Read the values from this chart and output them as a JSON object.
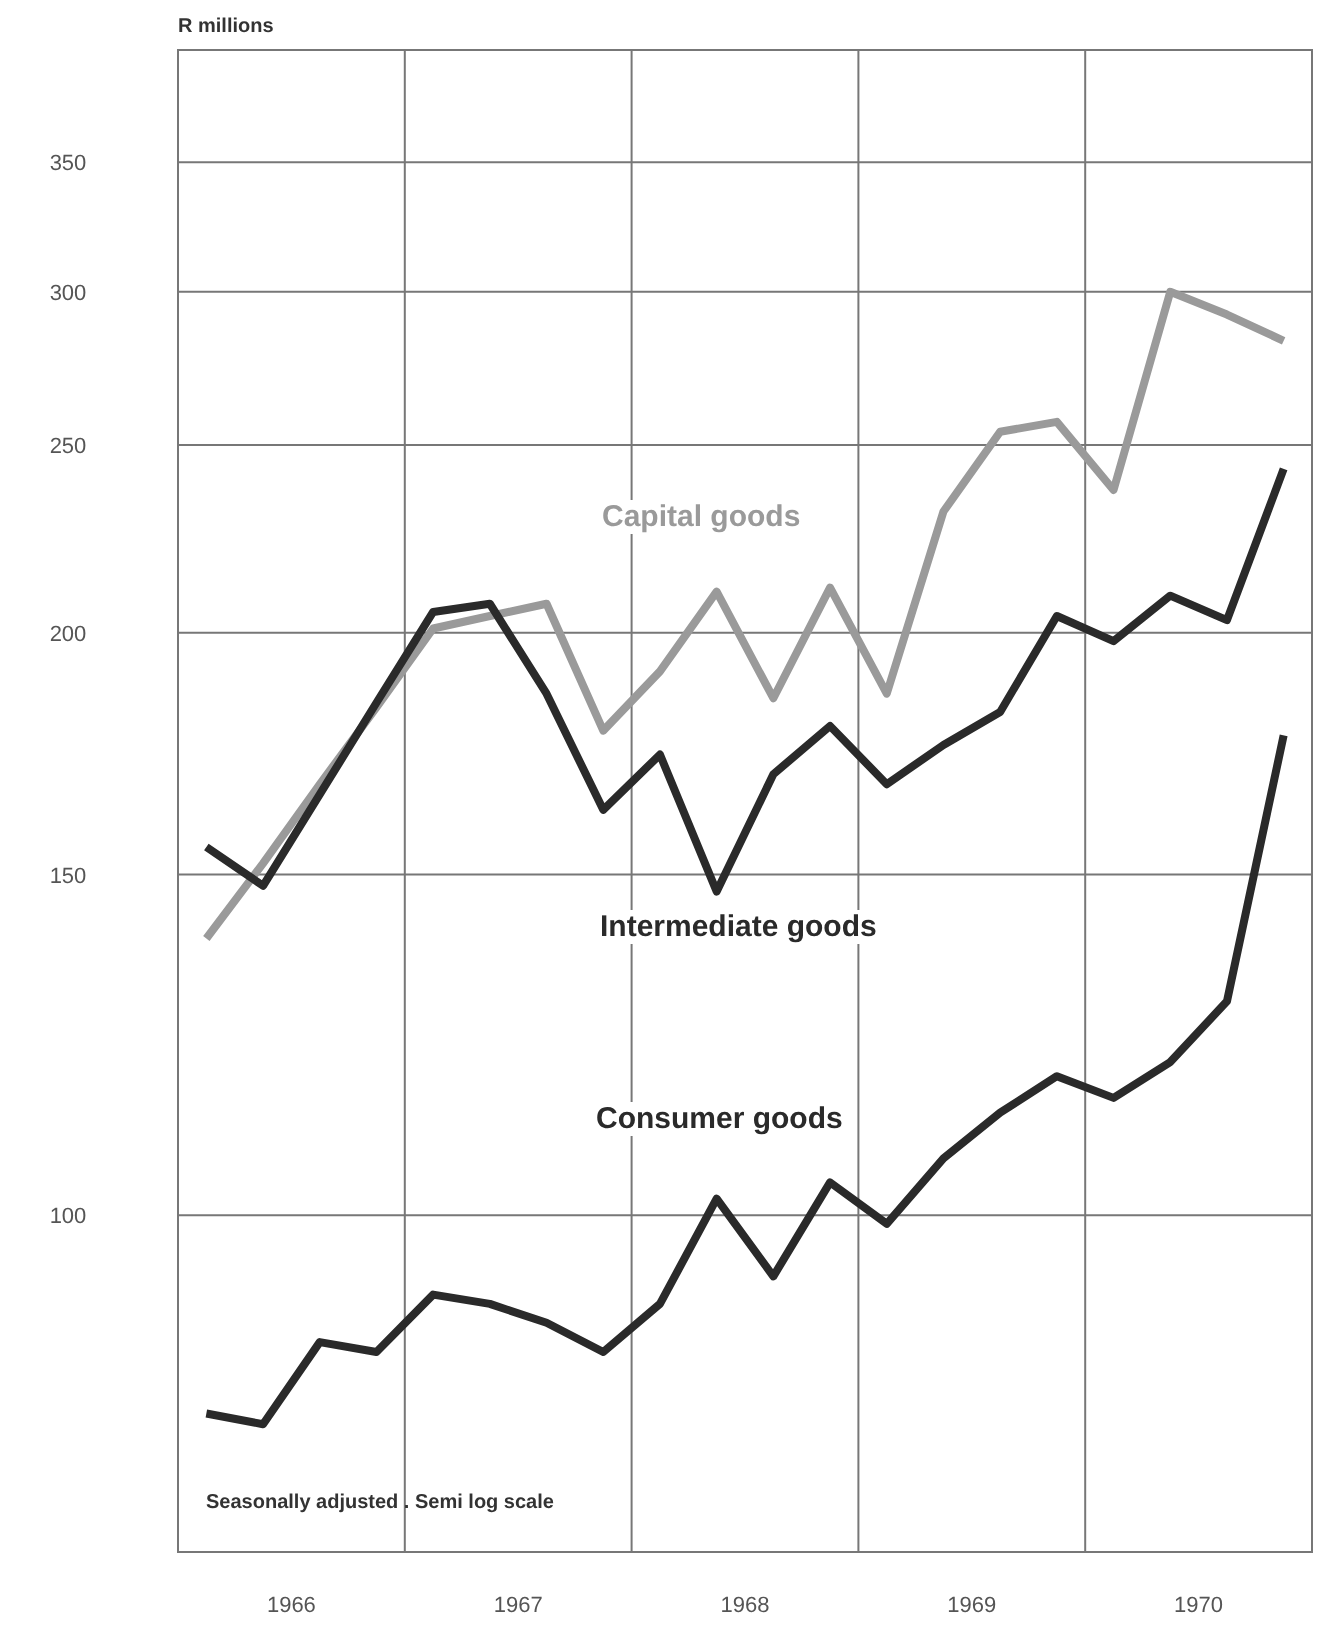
{
  "chart_data": {
    "type": "line",
    "ylabel": "R millions",
    "annotations": [
      "Seasonally adjusted . Semi log scale"
    ],
    "x": [
      1966.125,
      1966.375,
      1966.625,
      1966.875,
      1967.125,
      1967.375,
      1967.625,
      1967.875,
      1968.125,
      1968.375,
      1968.625,
      1968.875,
      1969.125,
      1969.375,
      1969.625,
      1969.875,
      1970.125,
      1970.375,
      1970.625,
      1970.875
    ],
    "series": [
      {
        "name": "Capital goods",
        "color": "#9a9a9a",
        "values": [
          139,
          152,
          167,
          183,
          201,
          204,
          207,
          178,
          191,
          210,
          185,
          211,
          186,
          231,
          254,
          257,
          237,
          300,
          292,
          283
        ]
      },
      {
        "name": "Intermediate goods",
        "color": "#2a2a2a",
        "values": [
          155,
          148,
          165,
          184,
          205,
          207,
          186,
          162,
          173,
          147,
          169,
          179,
          167,
          175,
          182,
          204,
          198,
          209,
          203,
          243
        ]
      },
      {
        "name": "Consumer goods",
        "color": "#2a2a2a",
        "values": [
          79,
          78,
          86,
          85,
          91,
          90,
          88,
          85,
          90,
          102,
          93,
          104,
          99,
          107,
          113,
          118,
          115,
          120,
          129,
          177
        ]
      }
    ],
    "xlim": [
      1966,
      1971
    ],
    "xticks": [
      {
        "value": 1966.5,
        "label": "1966"
      },
      {
        "value": 1967,
        "label": null
      },
      {
        "value": 1967.5,
        "label": "1967"
      },
      {
        "value": 1968,
        "label": null
      },
      {
        "value": 1968.5,
        "label": "1968"
      },
      {
        "value": 1969,
        "label": null
      },
      {
        "value": 1969.5,
        "label": "1969"
      },
      {
        "value": 1970,
        "label": null
      },
      {
        "value": 1970.5,
        "label": "1970"
      }
    ],
    "ylim": [
      67,
      400
    ],
    "yticks": [
      100,
      150,
      200,
      250,
      300,
      350
    ],
    "log": true,
    "grid": true,
    "marker": "none",
    "line_style": "solid"
  }
}
